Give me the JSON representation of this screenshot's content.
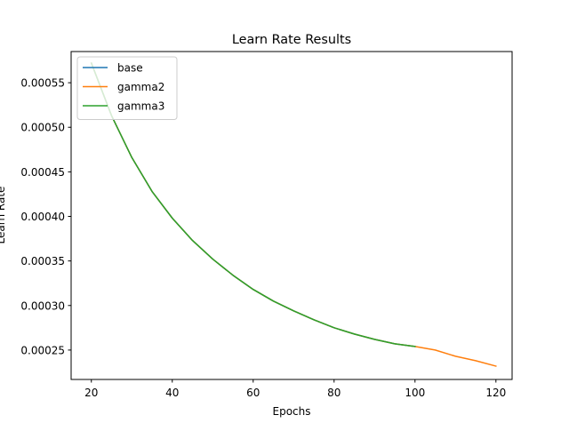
{
  "chart_data": {
    "type": "line",
    "title": "Learn Rate Results",
    "xlabel": "Epochs",
    "ylabel": "Learn Rate",
    "xlim": [
      15,
      124
    ],
    "ylim": [
      0.000217,
      0.000585
    ],
    "xticks": [
      20,
      40,
      60,
      80,
      100,
      120
    ],
    "xtick_labels": [
      "20",
      "40",
      "60",
      "80",
      "100",
      "120"
    ],
    "yticks": [
      0.00025,
      0.0003,
      0.00035,
      0.0004,
      0.00045,
      0.0005,
      0.00055
    ],
    "ytick_labels": [
      "0.00025",
      "0.00030",
      "0.00035",
      "0.00040",
      "0.00045",
      "0.00050",
      "0.00055"
    ],
    "grid": false,
    "legend_position": "upper-left",
    "series": [
      {
        "name": "base",
        "color": "#1f77b4",
        "x": [
          20,
          25,
          30,
          35,
          40,
          45,
          50,
          55,
          60,
          65,
          70,
          75,
          80,
          85,
          90,
          95,
          100
        ],
        "y": [
          0.000572,
          0.000513,
          0.000466,
          0.000428,
          0.000398,
          0.000373,
          0.000352,
          0.000334,
          0.000318,
          0.000305,
          0.000294,
          0.000284,
          0.000275,
          0.000268,
          0.000262,
          0.000257,
          0.000254
        ]
      },
      {
        "name": "gamma2",
        "color": "#ff7f0e",
        "x": [
          20,
          25,
          30,
          35,
          40,
          45,
          50,
          55,
          60,
          65,
          70,
          75,
          80,
          85,
          90,
          95,
          100,
          105,
          110,
          115,
          120
        ],
        "y": [
          0.000572,
          0.000513,
          0.000466,
          0.000428,
          0.000398,
          0.000373,
          0.000352,
          0.000334,
          0.000318,
          0.000305,
          0.000294,
          0.000284,
          0.000275,
          0.000268,
          0.000262,
          0.000257,
          0.000254,
          0.00025,
          0.000243,
          0.000238,
          0.000232
        ]
      },
      {
        "name": "gamma3",
        "color": "#2ca02c",
        "x": [
          20,
          25,
          30,
          35,
          40,
          45,
          50,
          55,
          60,
          65,
          70,
          75,
          80,
          85,
          90,
          95,
          100
        ],
        "y": [
          0.000572,
          0.000513,
          0.000466,
          0.000428,
          0.000398,
          0.000373,
          0.000352,
          0.000334,
          0.000318,
          0.000305,
          0.000294,
          0.000284,
          0.000275,
          0.000268,
          0.000262,
          0.000257,
          0.000254
        ]
      }
    ]
  }
}
